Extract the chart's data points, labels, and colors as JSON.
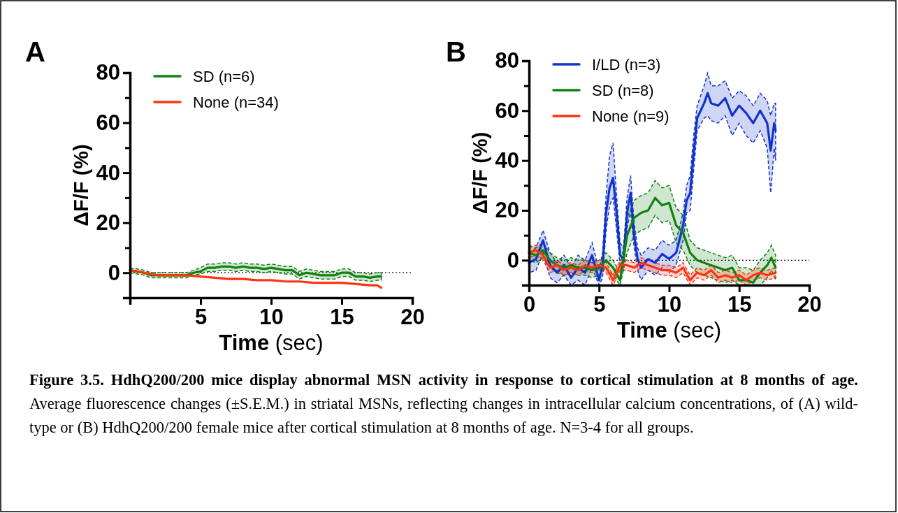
{
  "chart_data": [
    {
      "type": "line",
      "title": "A",
      "xlabel": "Time (sec)",
      "ylabel": "ΔF/F (%)",
      "xlim": [
        0,
        20
      ],
      "xticks": [
        5,
        10,
        15,
        20
      ],
      "ylim": [
        -10,
        80
      ],
      "yticks": [
        {
          "value": -10,
          "label": null
        },
        0,
        {
          "value": 10,
          "label": null
        },
        20,
        {
          "value": 30,
          "label": null
        },
        40,
        {
          "value": 50,
          "label": null
        },
        60,
        {
          "value": 70,
          "label": null
        },
        80
      ],
      "grid": false,
      "legend": "top left",
      "marker": "none",
      "line_style": "solid",
      "ref_lines": [
        {
          "axis": "y",
          "value": 0,
          "label": null,
          "color": "#000000",
          "line_style": "dotted"
        }
      ],
      "series": [
        {
          "name": "SD (n=6)",
          "color": "#128012",
          "x": [
            0,
            0.5,
            1,
            1.5,
            2,
            2.5,
            3,
            3.5,
            4,
            4.5,
            5,
            5.5,
            6,
            6.5,
            7,
            7.5,
            8,
            8.5,
            9,
            9.5,
            10,
            10.5,
            11,
            11.5,
            12,
            12.5,
            13,
            13.5,
            14,
            14.5,
            15,
            15.5,
            16,
            16.5,
            17,
            17.5,
            17.8
          ],
          "values": [
            1,
            0.5,
            0,
            -1,
            -1,
            -1,
            -1,
            -1,
            -1,
            0,
            0.5,
            2,
            2,
            2.5,
            2.5,
            2,
            2.5,
            2,
            2,
            1.5,
            2,
            1.5,
            1,
            1,
            -1,
            0,
            -0.5,
            -1,
            -1,
            -1,
            0,
            0,
            -1.5,
            -1.5,
            -2,
            -1.5,
            -1.5
          ],
          "lower": [
            0,
            -0.5,
            -1,
            -2,
            -2,
            -2,
            -2,
            -2,
            -2,
            -1,
            -0.5,
            0.5,
            0.5,
            1,
            1,
            0.5,
            1,
            0.5,
            0.5,
            0,
            0.5,
            0,
            -0.5,
            -0.5,
            -2.5,
            -1.5,
            -2,
            -2.5,
            -2.5,
            -2.5,
            -1.5,
            -1.5,
            -3,
            -3,
            -3.5,
            -3,
            -3
          ],
          "upper": [
            2,
            1.5,
            1,
            0,
            0,
            0,
            0,
            0,
            0,
            1,
            2,
            3.5,
            3.5,
            4,
            4,
            3.5,
            4,
            3.5,
            3.5,
            3,
            3.5,
            3,
            2.5,
            2.5,
            0.5,
            1.5,
            1,
            0.5,
            0.5,
            0.5,
            1.5,
            1.5,
            0,
            0,
            -0.5,
            0,
            0
          ]
        },
        {
          "name": "None (n=34)",
          "color": "#ff3311",
          "x": [
            0,
            1,
            2,
            3,
            4,
            5,
            6,
            7,
            8,
            9,
            10,
            11,
            12,
            13,
            14,
            15,
            16,
            17,
            17.5,
            17.8
          ],
          "values": [
            1,
            0,
            -1,
            -1,
            -1,
            -1.5,
            -2,
            -2.5,
            -2.5,
            -3,
            -3,
            -3.5,
            -3.5,
            -4,
            -4,
            -4,
            -4.5,
            -5,
            -5,
            -6
          ]
        }
      ],
      "annotations": [
        "Figure 3.5. HdhQ200/200 mice display abnormal MSN activity in response to cortical stimulation at 8 months of age.",
        "Average fluorescence changes (±S.E.M.) in striatal MSNs, reflecting changes in intracellular calcium concentrations, of (A) wild-type or (B) HdhQ200/200 female mice after cortical stimulation at 8 months of age. N=3-4 for all groups."
      ]
    },
    {
      "type": "line",
      "title": "B",
      "xlabel": "Time (sec)",
      "ylabel": "ΔF/F (%)",
      "xlim": [
        0,
        20
      ],
      "xticks": [
        0,
        5,
        10,
        15,
        20
      ],
      "ylim": [
        -10,
        80
      ],
      "yticks": [
        {
          "value": -10,
          "label": null
        },
        0,
        {
          "value": 10,
          "label": null
        },
        20,
        {
          "value": 30,
          "label": null
        },
        40,
        {
          "value": 50,
          "label": null
        },
        60,
        {
          "value": 70,
          "label": null
        },
        80
      ],
      "grid": false,
      "legend": "top left",
      "marker": "none",
      "line_style": "solid",
      "ref_lines": [
        {
          "axis": "y",
          "value": 0,
          "label": null,
          "color": "#000000",
          "line_style": "dotted"
        }
      ],
      "series": [
        {
          "name": "I/LD (n=3)",
          "color": "#1133cc",
          "x": [
            0,
            0.5,
            1,
            1.5,
            2,
            2.5,
            3,
            3.5,
            4,
            4.5,
            5,
            5.25,
            5.5,
            5.75,
            6,
            6.25,
            6.5,
            6.75,
            7,
            7.25,
            7.5,
            7.75,
            8,
            8.5,
            9,
            9.5,
            10,
            10.5,
            11,
            11.25,
            11.5,
            11.75,
            12,
            12.5,
            12.75,
            13,
            13.5,
            14,
            14.5,
            15,
            15.5,
            16,
            16.5,
            17,
            17.25,
            17.5,
            17.6
          ],
          "values": [
            -1,
            0.5,
            8,
            -2,
            -5,
            -2,
            -7,
            -3,
            -5,
            2,
            -8,
            -2,
            19,
            29,
            33,
            19,
            2,
            0.5,
            19,
            27,
            10,
            0.5,
            -3,
            0.5,
            -1,
            2.5,
            0.5,
            3,
            14,
            24,
            27,
            43,
            57,
            63,
            67,
            63,
            62,
            65,
            58,
            62,
            59,
            55,
            60,
            55,
            44,
            55,
            52
          ],
          "lower": [
            -5,
            -4,
            3,
            -7,
            -9,
            -6,
            -10,
            -8,
            -10,
            -3,
            -10,
            -7,
            12,
            22,
            25,
            12,
            -2,
            -4,
            13,
            20,
            5,
            -4,
            -8,
            -4,
            -6,
            -3,
            -5,
            -2,
            8,
            19,
            20,
            36,
            52,
            57,
            58,
            56,
            55,
            58,
            50,
            55,
            50,
            47,
            52,
            45,
            27,
            45,
            40
          ],
          "upper": [
            3,
            5,
            12,
            3,
            -1,
            2,
            -3,
            2,
            0,
            7,
            -4,
            3,
            26,
            42,
            47,
            26,
            7,
            5,
            25,
            34,
            15,
            5,
            2,
            5,
            4,
            8,
            6,
            8,
            19,
            30,
            34,
            50,
            62,
            70,
            75,
            70,
            70,
            72,
            65,
            68,
            66,
            62,
            67,
            64,
            58,
            63,
            63
          ]
        },
        {
          "name": "SD (n=8)",
          "color": "#128012",
          "x": [
            0,
            0.5,
            1,
            1.5,
            2,
            2.5,
            3,
            3.5,
            4,
            4.5,
            5,
            5.5,
            6,
            6.5,
            7,
            7.5,
            8,
            8.5,
            9,
            9.5,
            10,
            10.5,
            11,
            11.5,
            12,
            12.5,
            13,
            13.5,
            14,
            14.5,
            15,
            15.5,
            16,
            16.5,
            17,
            17.3,
            17.6
          ],
          "values": [
            3,
            2,
            4,
            0,
            -2,
            -3,
            -2,
            -3,
            -3,
            -4,
            -3,
            0,
            -3,
            -8,
            10,
            17,
            19,
            20,
            25,
            22,
            23,
            14,
            11,
            3,
            0,
            -1,
            -2,
            -3,
            -4,
            -3,
            -8,
            -8,
            -9,
            -5,
            -2,
            1,
            -3
          ],
          "lower": [
            0,
            -1,
            1,
            -3,
            -5,
            -6,
            -5,
            -6,
            -6,
            -7,
            -6,
            -3,
            -6,
            -10,
            3,
            10,
            12,
            13,
            18,
            15,
            16,
            7,
            4,
            -2,
            -5,
            -6,
            -7,
            -8,
            -9,
            -8,
            -10,
            -10,
            -10,
            -10,
            -7,
            -4,
            -8
          ],
          "upper": [
            6,
            5,
            7,
            3,
            1,
            0,
            1,
            0,
            0,
            -1,
            0,
            3,
            0,
            -5,
            17,
            24,
            26,
            27,
            32,
            29,
            30,
            21,
            18,
            8,
            5,
            4,
            3,
            2,
            1,
            2,
            -3,
            -3,
            -4,
            0,
            3,
            6,
            2
          ]
        },
        {
          "name": "None (n=9)",
          "color": "#ff3311",
          "x": [
            0,
            0.5,
            1,
            1.5,
            2,
            2.5,
            3,
            3.5,
            4,
            4.5,
            5,
            5.5,
            6,
            6.5,
            7,
            7.5,
            8,
            8.5,
            9,
            9.5,
            10,
            10.5,
            11,
            11.5,
            12,
            12.5,
            13,
            13.5,
            14,
            14.5,
            15,
            15.5,
            16,
            16.5,
            17,
            17.6
          ],
          "values": [
            3,
            4,
            2,
            -3,
            -2,
            -4,
            -3,
            -4,
            -2,
            -3,
            -2,
            -3,
            -8,
            -2,
            -2,
            -3,
            -1,
            -2,
            -3,
            -4,
            -4,
            -5,
            -3,
            -8,
            -5,
            -6,
            -4,
            -7,
            -6,
            -7,
            -6,
            -8,
            -6,
            -5,
            -6,
            -5
          ],
          "lower": [
            1,
            2,
            0,
            -5,
            -4,
            -6,
            -5,
            -6,
            -4,
            -5,
            -4,
            -5,
            -10,
            -4,
            -4,
            -5,
            -3,
            -4,
            -5,
            -6,
            -6,
            -7,
            -5,
            -10,
            -7,
            -8,
            -6,
            -9,
            -8,
            -9,
            -8,
            -10,
            -8,
            -7,
            -8,
            -7
          ],
          "upper": [
            5,
            6,
            4,
            -1,
            0,
            -2,
            -1,
            -2,
            0,
            -1,
            0,
            -1,
            -6,
            0,
            0,
            -1,
            1,
            0,
            -1,
            -2,
            -2,
            -3,
            -1,
            -6,
            -3,
            -4,
            -2,
            -5,
            -4,
            -5,
            -4,
            -6,
            -4,
            -3,
            -4,
            -3
          ]
        }
      ]
    }
  ]
}
